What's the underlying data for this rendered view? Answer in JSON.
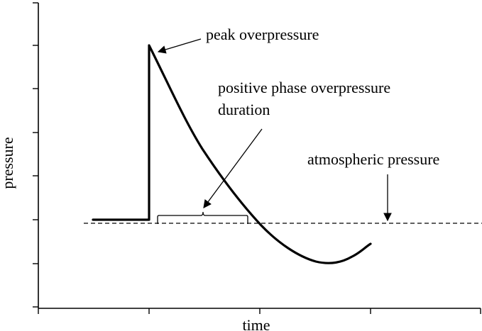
{
  "diagram": {
    "xlabel": "time",
    "ylabel": "pressure",
    "annotations": {
      "peak": "peak overpressure",
      "duration_line1": "positive phase overpressure",
      "duration_line2": "duration",
      "atmospheric": "atmospheric pressure"
    }
  }
}
